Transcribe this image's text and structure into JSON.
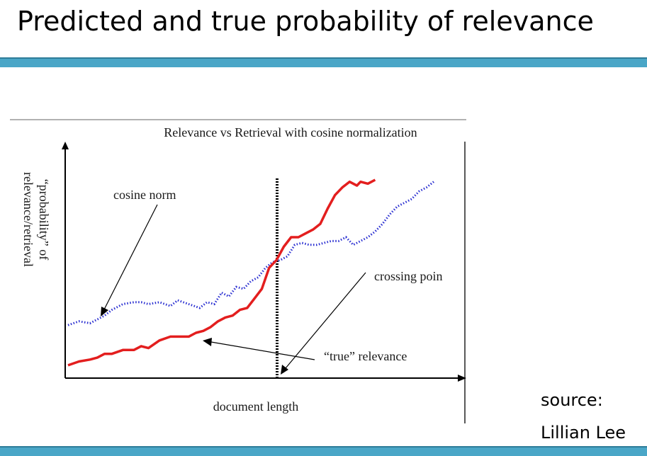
{
  "slide": {
    "title": "Predicted and true probability of relevance",
    "source_label": "source:",
    "author": "Lillian Lee",
    "accent_color": "#4aa6c7"
  },
  "chart_data": {
    "type": "line",
    "title": "Relevance vs Retrieval with cosine normalization",
    "xlabel": "document length",
    "ylabel_line1": "“probability” of",
    "ylabel_line2": "relevance/retrieval",
    "axis_ticks": false,
    "xlim": [
      0,
      100
    ],
    "ylim": [
      0,
      100
    ],
    "annotations": {
      "cosine": "cosine norm",
      "crossing": "crossing poin",
      "true_rel": "“true” relevance"
    },
    "series": [
      {
        "key": "cosine",
        "color": "#2a2fd1",
        "style": "dotted",
        "x": [
          0,
          3,
          6,
          8,
          10,
          12,
          15,
          18,
          20,
          22,
          25,
          28,
          30,
          33,
          36,
          38,
          40,
          42,
          44,
          46,
          48,
          50,
          52,
          54,
          56,
          58,
          60,
          62,
          64,
          66,
          68,
          70,
          72,
          74,
          76,
          78,
          80,
          82,
          84,
          86,
          88,
          90,
          92,
          94,
          96,
          98,
          100
        ],
        "y": [
          24,
          26,
          25,
          27,
          29,
          32,
          35,
          36,
          36,
          35,
          36,
          34,
          37,
          35,
          33,
          36,
          35,
          41,
          39,
          44,
          43,
          47,
          49,
          54,
          57,
          58,
          60,
          66,
          67,
          66,
          66,
          67,
          68,
          68,
          70,
          66,
          68,
          70,
          73,
          77,
          82,
          86,
          88,
          90,
          94,
          96,
          99
        ]
      },
      {
        "key": "true",
        "color": "#e31e1e",
        "style": "solid",
        "x": [
          0,
          3,
          6,
          8,
          10,
          12,
          15,
          18,
          20,
          22,
          25,
          28,
          30,
          33,
          35,
          37,
          39,
          41,
          43,
          45,
          47,
          49,
          51,
          53,
          55,
          57,
          59,
          61,
          63,
          65,
          67,
          69,
          71,
          73,
          75,
          77,
          79,
          80,
          82,
          84
        ],
        "y": [
          3,
          5,
          6,
          7,
          9,
          9,
          11,
          11,
          13,
          12,
          16,
          18,
          18,
          18,
          20,
          21,
          23,
          26,
          28,
          29,
          32,
          33,
          38,
          43,
          54,
          58,
          65,
          70,
          70,
          72,
          74,
          77,
          85,
          92,
          96,
          99,
          97,
          99,
          98,
          100
        ]
      }
    ]
  }
}
